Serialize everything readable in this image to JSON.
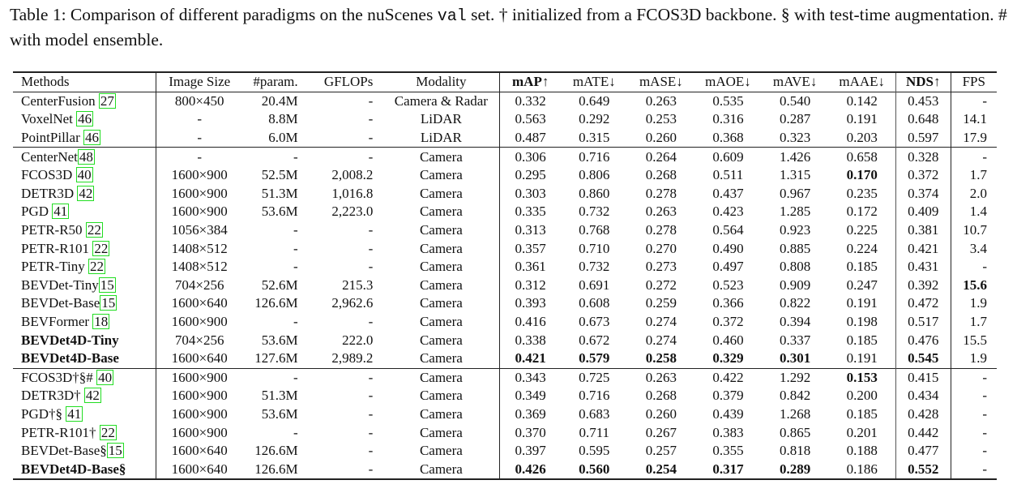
{
  "caption": {
    "label": "Table 1:",
    "text_before_mono": "Comparison of different paradigms on the nuScenes",
    "mono": "val",
    "text_after_mono": "set. † initialized from a FCOS3D backbone. § with test-time augmentation. # with model ensemble."
  },
  "table": {
    "headers": [
      "Methods",
      "Image Size",
      "#param.",
      "GFLOPs",
      "Modality",
      "mAP↑",
      "mATE↓",
      "mASE↓",
      "mAOE↓",
      "mAVE↓",
      "mAAE↓",
      "NDS↑",
      "FPS"
    ],
    "bold_headers": [
      "mAP↑",
      "NDS↑"
    ],
    "sections": [
      {
        "rows": [
          {
            "method": "CenterFusion ",
            "cite": "27",
            "bold": false,
            "size": "800×450",
            "param": "20.4M",
            "gflops": "-",
            "modality": "Camera & Radar",
            "mAP": "0.332",
            "mATE": "0.649",
            "mASE": "0.263",
            "mAOE": "0.535",
            "mAVE": "0.540",
            "mAAE": "0.142",
            "NDS": "0.453",
            "FPS": "-",
            "bold_cells": []
          },
          {
            "method": "VoxelNet ",
            "cite": "46",
            "bold": false,
            "size": "-",
            "param": "8.8M",
            "gflops": "-",
            "modality": "LiDAR",
            "mAP": "0.563",
            "mATE": "0.292",
            "mASE": "0.253",
            "mAOE": "0.316",
            "mAVE": "0.287",
            "mAAE": "0.191",
            "NDS": "0.648",
            "FPS": "14.1",
            "bold_cells": []
          },
          {
            "method": "PointPillar ",
            "cite": "46",
            "bold": false,
            "size": "-",
            "param": "6.0M",
            "gflops": "-",
            "modality": "LiDAR",
            "mAP": "0.487",
            "mATE": "0.315",
            "mASE": "0.260",
            "mAOE": "0.368",
            "mAVE": "0.323",
            "mAAE": "0.203",
            "NDS": "0.597",
            "FPS": "17.9",
            "bold_cells": []
          }
        ]
      },
      {
        "rows": [
          {
            "method": "CenterNet",
            "cite": "48",
            "bold": false,
            "size": "-",
            "param": "-",
            "gflops": "-",
            "modality": "Camera",
            "mAP": "0.306",
            "mATE": "0.716",
            "mASE": "0.264",
            "mAOE": "0.609",
            "mAVE": "1.426",
            "mAAE": "0.658",
            "NDS": "0.328",
            "FPS": "-",
            "bold_cells": []
          },
          {
            "method": "FCOS3D ",
            "cite": "40",
            "bold": false,
            "size": "1600×900",
            "param": "52.5M",
            "gflops": "2,008.2",
            "modality": "Camera",
            "mAP": "0.295",
            "mATE": "0.806",
            "mASE": "0.268",
            "mAOE": "0.511",
            "mAVE": "1.315",
            "mAAE": "0.170",
            "NDS": "0.372",
            "FPS": "1.7",
            "bold_cells": [
              "mAAE"
            ]
          },
          {
            "method": "DETR3D ",
            "cite": "42",
            "bold": false,
            "size": "1600×900",
            "param": "51.3M",
            "gflops": "1,016.8",
            "modality": "Camera",
            "mAP": "0.303",
            "mATE": "0.860",
            "mASE": "0.278",
            "mAOE": "0.437",
            "mAVE": "0.967",
            "mAAE": "0.235",
            "NDS": "0.374",
            "FPS": "2.0",
            "bold_cells": []
          },
          {
            "method": "PGD ",
            "cite": "41",
            "bold": false,
            "size": "1600×900",
            "param": "53.6M",
            "gflops": "2,223.0",
            "modality": "Camera",
            "mAP": "0.335",
            "mATE": "0.732",
            "mASE": "0.263",
            "mAOE": "0.423",
            "mAVE": "1.285",
            "mAAE": "0.172",
            "NDS": "0.409",
            "FPS": "1.4",
            "bold_cells": []
          },
          {
            "method": "PETR-R50 ",
            "cite": "22",
            "bold": false,
            "size": "1056×384",
            "param": "-",
            "gflops": "-",
            "modality": "Camera",
            "mAP": "0.313",
            "mATE": "0.768",
            "mASE": "0.278",
            "mAOE": "0.564",
            "mAVE": "0.923",
            "mAAE": "0.225",
            "NDS": "0.381",
            "FPS": "10.7",
            "bold_cells": []
          },
          {
            "method": "PETR-R101 ",
            "cite": "22",
            "bold": false,
            "size": "1408×512",
            "param": "-",
            "gflops": "-",
            "modality": "Camera",
            "mAP": "0.357",
            "mATE": "0.710",
            "mASE": "0.270",
            "mAOE": "0.490",
            "mAVE": "0.885",
            "mAAE": "0.224",
            "NDS": "0.421",
            "FPS": "3.4",
            "bold_cells": []
          },
          {
            "method": "PETR-Tiny ",
            "cite": "22",
            "bold": false,
            "size": "1408×512",
            "param": "-",
            "gflops": "-",
            "modality": "Camera",
            "mAP": "0.361",
            "mATE": "0.732",
            "mASE": "0.273",
            "mAOE": "0.497",
            "mAVE": "0.808",
            "mAAE": "0.185",
            "NDS": "0.431",
            "FPS": "-",
            "bold_cells": []
          },
          {
            "method": "BEVDet-Tiny",
            "cite": "15",
            "bold": false,
            "size": "704×256",
            "param": "52.6M",
            "gflops": "215.3",
            "modality": "Camera",
            "mAP": "0.312",
            "mATE": "0.691",
            "mASE": "0.272",
            "mAOE": "0.523",
            "mAVE": "0.909",
            "mAAE": "0.247",
            "NDS": "0.392",
            "FPS": "15.6",
            "bold_cells": [
              "FPS"
            ]
          },
          {
            "method": "BEVDet-Base",
            "cite": "15",
            "bold": false,
            "size": "1600×640",
            "param": "126.6M",
            "gflops": "2,962.6",
            "modality": "Camera",
            "mAP": "0.393",
            "mATE": "0.608",
            "mASE": "0.259",
            "mAOE": "0.366",
            "mAVE": "0.822",
            "mAAE": "0.191",
            "NDS": "0.472",
            "FPS": "1.9",
            "bold_cells": []
          },
          {
            "method": "BEVFormer ",
            "cite": "18",
            "bold": false,
            "size": "1600×900",
            "param": "-",
            "gflops": "-",
            "modality": "Camera",
            "mAP": "0.416",
            "mATE": "0.673",
            "mASE": "0.274",
            "mAOE": "0.372",
            "mAVE": "0.394",
            "mAAE": "0.198",
            "NDS": "0.517",
            "FPS": "1.7",
            "bold_cells": []
          },
          {
            "method": "BEVDet4D-Tiny",
            "cite": "",
            "bold": true,
            "size": "704×256",
            "param": "53.6M",
            "gflops": "222.0",
            "modality": "Camera",
            "mAP": "0.338",
            "mATE": "0.672",
            "mASE": "0.274",
            "mAOE": "0.460",
            "mAVE": "0.337",
            "mAAE": "0.185",
            "NDS": "0.476",
            "FPS": "15.5",
            "bold_cells": []
          },
          {
            "method": "BEVDet4D-Base",
            "cite": "",
            "bold": true,
            "size": "1600×640",
            "param": "127.6M",
            "gflops": "2,989.2",
            "modality": "Camera",
            "mAP": "0.421",
            "mATE": "0.579",
            "mASE": "0.258",
            "mAOE": "0.329",
            "mAVE": "0.301",
            "mAAE": "0.191",
            "NDS": "0.545",
            "FPS": "1.9",
            "bold_cells": [
              "mAP",
              "mATE",
              "mASE",
              "mAOE",
              "mAVE",
              "NDS"
            ]
          }
        ]
      },
      {
        "rows": [
          {
            "method": "FCOS3D†§# ",
            "cite": "40",
            "bold": false,
            "size": "1600×900",
            "param": "-",
            "gflops": "-",
            "modality": "Camera",
            "mAP": "0.343",
            "mATE": "0.725",
            "mASE": "0.263",
            "mAOE": "0.422",
            "mAVE": "1.292",
            "mAAE": "0.153",
            "NDS": "0.415",
            "FPS": "-",
            "bold_cells": [
              "mAAE"
            ]
          },
          {
            "method": "DETR3D† ",
            "cite": "42",
            "bold": false,
            "size": "1600×900",
            "param": "51.3M",
            "gflops": "-",
            "modality": "Camera",
            "mAP": "0.349",
            "mATE": "0.716",
            "mASE": "0.268",
            "mAOE": "0.379",
            "mAVE": "0.842",
            "mAAE": "0.200",
            "NDS": "0.434",
            "FPS": "-",
            "bold_cells": []
          },
          {
            "method": "PGD†§ ",
            "cite": "41",
            "bold": false,
            "size": "1600×900",
            "param": "53.6M",
            "gflops": "-",
            "modality": "Camera",
            "mAP": "0.369",
            "mATE": "0.683",
            "mASE": "0.260",
            "mAOE": "0.439",
            "mAVE": "1.268",
            "mAAE": "0.185",
            "NDS": "0.428",
            "FPS": "-",
            "bold_cells": []
          },
          {
            "method": "PETR-R101† ",
            "cite": "22",
            "bold": false,
            "size": "1600×900",
            "param": "-",
            "gflops": "-",
            "modality": "Camera",
            "mAP": "0.370",
            "mATE": "0.711",
            "mASE": "0.267",
            "mAOE": "0.383",
            "mAVE": "0.865",
            "mAAE": "0.201",
            "NDS": "0.442",
            "FPS": "-",
            "bold_cells": []
          },
          {
            "method": "BEVDet-Base§",
            "cite": "15",
            "bold": false,
            "size": "1600×640",
            "param": "126.6M",
            "gflops": "-",
            "modality": "Camera",
            "mAP": "0.397",
            "mATE": "0.595",
            "mASE": "0.257",
            "mAOE": "0.355",
            "mAVE": "0.818",
            "mAAE": "0.188",
            "NDS": "0.477",
            "FPS": "-",
            "bold_cells": []
          },
          {
            "method": "BEVDet4D-Base§",
            "cite": "",
            "bold": true,
            "size": "1600×640",
            "param": "126.6M",
            "gflops": "-",
            "modality": "Camera",
            "mAP": "0.426",
            "mATE": "0.560",
            "mASE": "0.254",
            "mAOE": "0.317",
            "mAVE": "0.289",
            "mAAE": "0.186",
            "NDS": "0.552",
            "FPS": "-",
            "bold_cells": [
              "mAP",
              "mATE",
              "mASE",
              "mAOE",
              "mAVE",
              "NDS"
            ]
          }
        ]
      }
    ]
  },
  "colors": {
    "text": "#111111",
    "rule": "#222222",
    "citation_box": "#22dd22"
  }
}
